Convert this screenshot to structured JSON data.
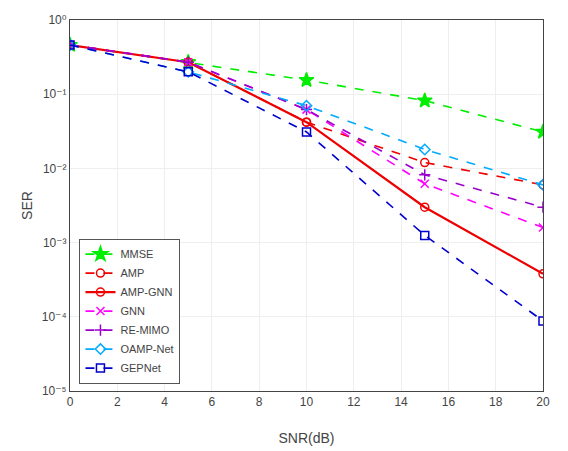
{
  "chart_data": {
    "type": "line",
    "xlabel": "SNR(dB)",
    "ylabel": "SER",
    "log": "y",
    "grid": true,
    "legend": "lower left",
    "xlim": [
      0,
      20
    ],
    "xticks": [
      0,
      2,
      4,
      6,
      8,
      10,
      12,
      14,
      16,
      18,
      20
    ],
    "ylim": [
      1e-05,
      1
    ],
    "yticks": [
      {
        "value": 1e-05,
        "label": "10⁻⁵"
      },
      {
        "value": 0.0001,
        "label": "10⁻⁴"
      },
      {
        "value": 0.001,
        "label": "10⁻³"
      },
      {
        "value": 0.01,
        "label": "10⁻²"
      },
      {
        "value": 0.1,
        "label": "10⁻¹"
      },
      {
        "value": 1,
        "label": "10⁰"
      }
    ],
    "x": [
      0,
      5,
      10,
      15,
      20
    ],
    "series": [
      {
        "name": "MMSE",
        "color": "#00ee00",
        "marker": "star",
        "line_style": "dash",
        "values": [
          0.46,
          0.27,
          0.155,
          0.082,
          0.031
        ]
      },
      {
        "name": "AMP",
        "color": "#ee0000",
        "marker": "circle-open",
        "line_style": "dash",
        "values": [
          0.46,
          0.27,
          0.042,
          0.012,
          0.006
        ]
      },
      {
        "name": "AMP-GNN",
        "color": "#ee0000",
        "marker": "circle-open",
        "line_style": "solid",
        "values": [
          0.46,
          0.27,
          0.042,
          0.003,
          0.00038
        ]
      },
      {
        "name": "GNN",
        "color": "#ff00ff",
        "marker": "x-thin",
        "line_style": "dash",
        "values": [
          0.46,
          0.27,
          0.062,
          0.0062,
          0.0016
        ]
      },
      {
        "name": "RE-MIMO",
        "color": "#9900cc",
        "marker": "cross-thin",
        "line_style": "dash",
        "values": [
          0.46,
          0.27,
          0.062,
          0.0082,
          0.003
        ]
      },
      {
        "name": "OAMP-Net",
        "color": "#00aaff",
        "marker": "diamond-open",
        "line_style": "dash",
        "values": [
          0.46,
          0.2,
          0.07,
          0.018,
          0.006
        ]
      },
      {
        "name": "GEPNet",
        "color": "#0000cc",
        "marker": "square-open",
        "line_style": "dash",
        "values": [
          0.46,
          0.2,
          0.031,
          0.00125,
          8.8e-05
        ]
      }
    ]
  }
}
